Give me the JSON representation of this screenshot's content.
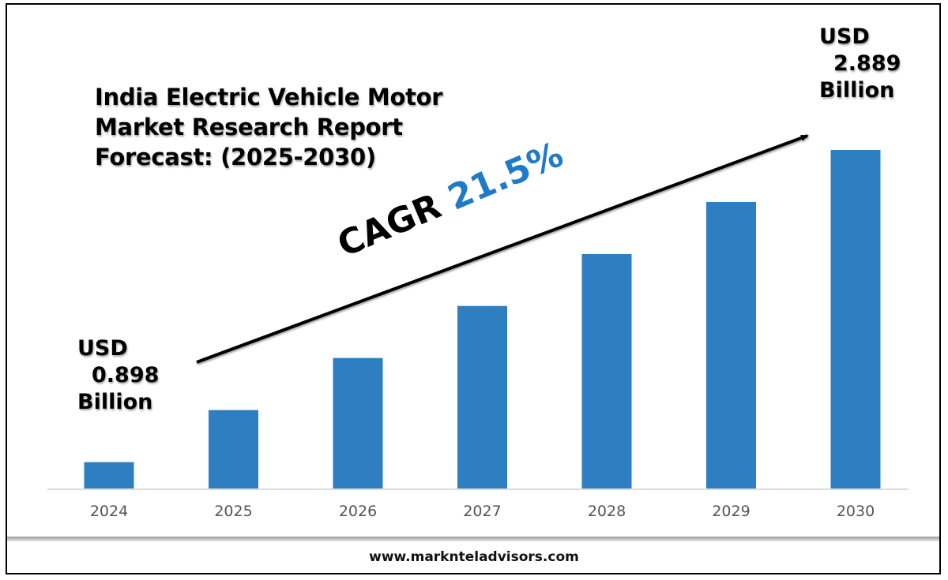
{
  "footer": {
    "website": "www.marknteladvisors.com"
  },
  "annotations": {
    "start": {
      "currency": "USD",
      "value": "0.898",
      "unit": "Billion"
    },
    "end": {
      "currency": "USD",
      "value": "2.889",
      "unit": "Billion"
    },
    "cagr_label": "CAGR",
    "cagr_value": "21.5%"
  },
  "chart_data": {
    "type": "bar",
    "title": "India Electric Vehicle Motor Market Research Report Forecast: (2025-2030)",
    "title_lines": [
      "India Electric Vehicle Motor",
      "Market Research Report",
      "Forecast: (2025-2030)"
    ],
    "categories": [
      "2024",
      "2025",
      "2026",
      "2027",
      "2028",
      "2029",
      "2030"
    ],
    "values": [
      0.898,
      1.23,
      1.562,
      1.894,
      2.225,
      2.557,
      2.889
    ],
    "unit": "USD Billion",
    "bar_color": "#2e7fc1",
    "xlabel": "",
    "ylabel": "",
    "ylim": [
      0.73,
      2.889
    ],
    "grid": false,
    "legend": "none",
    "cagr": "21.5%"
  }
}
